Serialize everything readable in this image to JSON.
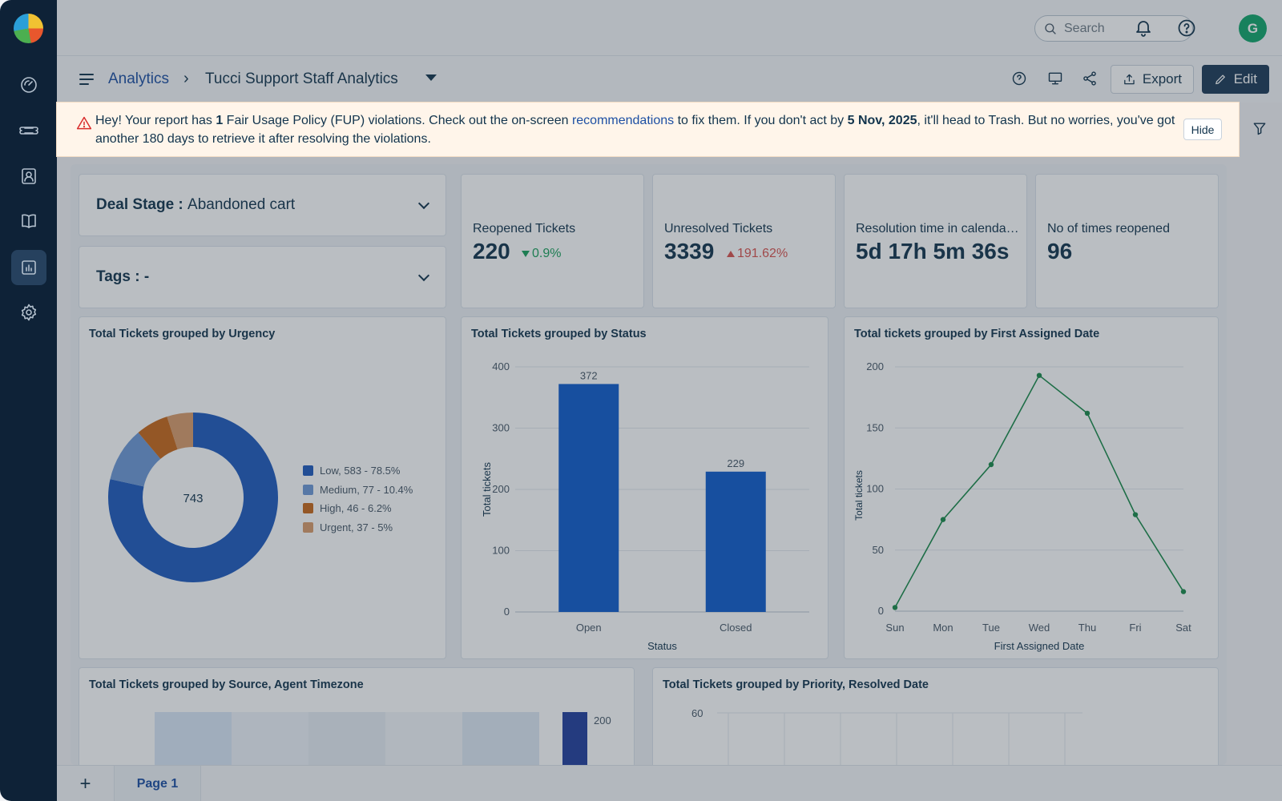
{
  "sidebar": {
    "items": [
      {
        "name": "dashboard",
        "icon": "gauge-icon"
      },
      {
        "name": "tickets",
        "icon": "ticket-icon"
      },
      {
        "name": "contacts",
        "icon": "contact-icon"
      },
      {
        "name": "solutions",
        "icon": "book-icon"
      },
      {
        "name": "analytics",
        "icon": "analytics-icon",
        "active": true
      },
      {
        "name": "admin",
        "icon": "gear-icon"
      }
    ]
  },
  "topbar": {
    "search_placeholder": "Search",
    "avatar_initial": "G"
  },
  "header": {
    "breadcrumb_root": "Analytics",
    "breadcrumb_sep": "›",
    "report_title": "Tucci Support Staff Analytics",
    "export_label": "Export",
    "edit_label": "Edit"
  },
  "banner": {
    "text_1": "Hey! Your report has ",
    "count": "1",
    "text_2": " Fair Usage Policy (FUP) violations. Check out the on-screen ",
    "link": "recommendations",
    "text_3": " to fix them. If you don't act by ",
    "date": "5 Nov, 2025",
    "text_4": ", it'll head to Trash. But no worries, you've got another 180 days to retrieve it after resolving the violations.",
    "hide_label": "Hide"
  },
  "filters": {
    "deal_stage_label": "Deal Stage :",
    "deal_stage_value": "Abandoned cart",
    "tags_label": "Tags :",
    "tags_value": "-"
  },
  "kpis": [
    {
      "label": "Reopened Tickets",
      "value": "220",
      "change": "0.9%",
      "direction": "down"
    },
    {
      "label": "Unresolved Tickets",
      "value": "3339",
      "change": "191.62%",
      "direction": "up"
    },
    {
      "label": "Resolution time in calendar ...",
      "value": "5d 17h 5m 36s",
      "change": "",
      "direction": ""
    },
    {
      "label": "No of times reopened",
      "value": "96",
      "change": "",
      "direction": ""
    }
  ],
  "charts": {
    "urgency_title": "Total Tickets grouped by Urgency",
    "status_title": "Total Tickets grouped by Status",
    "assigned_title": "Total tickets grouped by First Assigned Date",
    "source_title": "Total Tickets grouped by Source, Agent Timezone",
    "priority_title": "Total Tickets grouped by Priority, Resolved Date"
  },
  "chart_data": [
    {
      "type": "pie",
      "title": "Total Tickets grouped by Urgency",
      "center_label": "743",
      "slices": [
        {
          "label": "Low, 583 - 78.5%",
          "value": 583,
          "color": "#1f5bbd"
        },
        {
          "label": "Medium, 77 -  10.4%",
          "value": 77,
          "color": "#6d99d6"
        },
        {
          "label": "High, 46 -  6.2%",
          "value": 46,
          "color": "#c7671a"
        },
        {
          "label": "Urgent, 37 -  5%",
          "value": 37,
          "color": "#d99b6a"
        }
      ]
    },
    {
      "type": "bar",
      "title": "Total Tickets grouped by Status",
      "categories": [
        "Open",
        "Closed"
      ],
      "values": [
        372,
        229
      ],
      "xlabel": "Status",
      "ylabel": "Total tickets",
      "ylim": [
        0,
        400
      ],
      "yticks": [
        0,
        100,
        200,
        300,
        400
      ],
      "color": "#0f5ccc"
    },
    {
      "type": "line",
      "title": "Total tickets grouped by First Assigned Date",
      "categories": [
        "Sun",
        "Mon",
        "Tue",
        "Wed",
        "Thu",
        "Fri",
        "Sat"
      ],
      "values": [
        3,
        75,
        120,
        193,
        162,
        79,
        16
      ],
      "xlabel": "First Assigned Date",
      "ylabel": "Total tickets",
      "ylim": [
        0,
        200
      ],
      "yticks": [
        0,
        50,
        100,
        150,
        200
      ],
      "color": "#1a8a4a"
    },
    {
      "type": "bar",
      "title": "Total Tickets grouped by Source, Agent Timezone",
      "data_label": "200"
    },
    {
      "type": "line",
      "title": "Total Tickets grouped by Priority, Resolved Date",
      "ytick_top": "60"
    }
  ],
  "bottombar": {
    "add_label": "+",
    "page_label": "Page 1"
  }
}
